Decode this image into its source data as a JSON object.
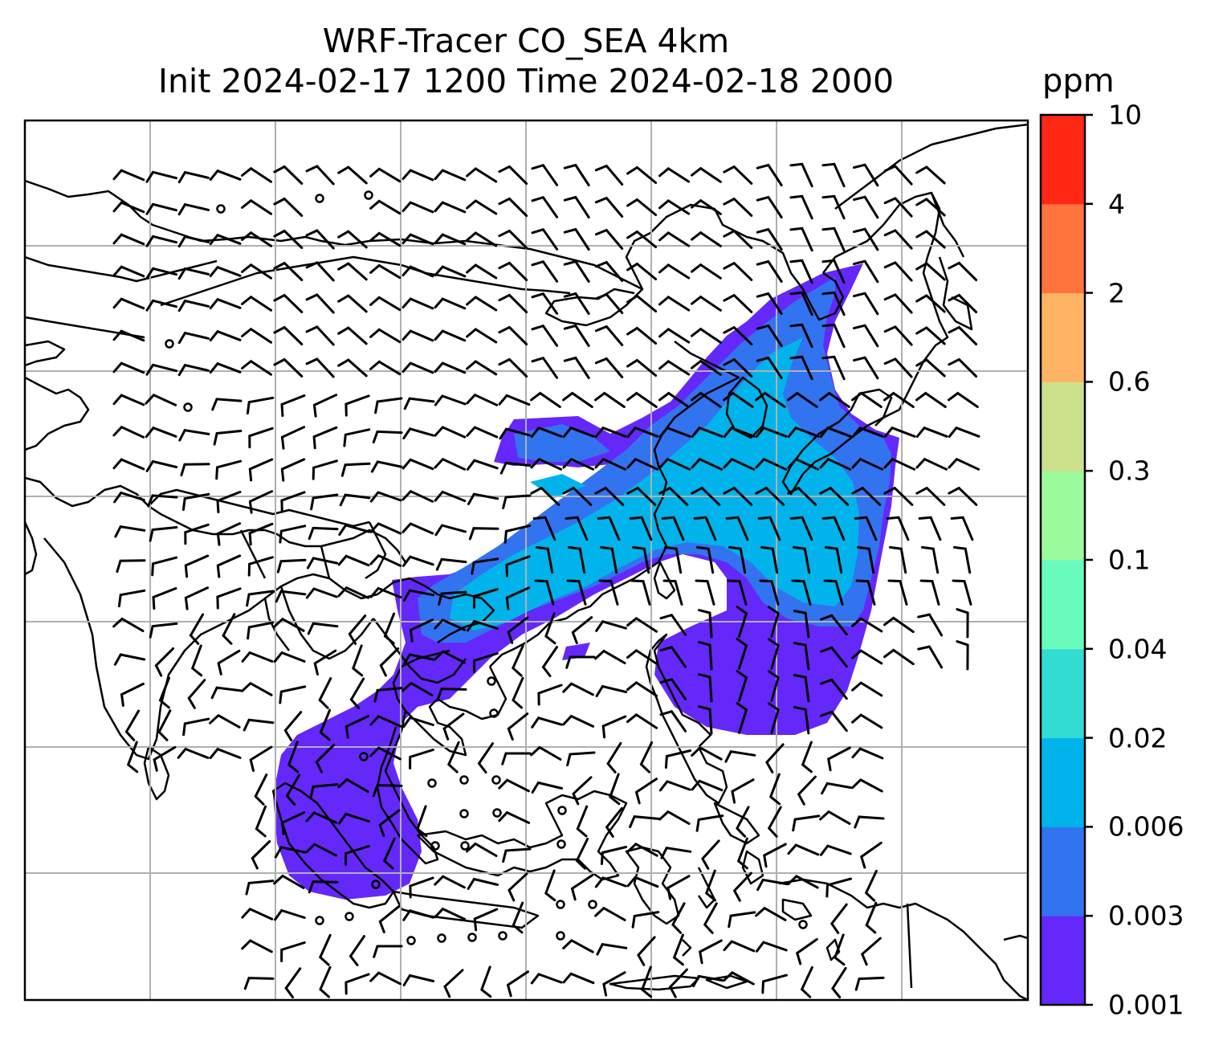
{
  "title": {
    "line1": "WRF-Tracer CO_SEA 4km",
    "line2": "Init 2024-02-17 1200 Time 2024-02-18 2000"
  },
  "colorbar": {
    "unit": "ppm",
    "levels": [
      "0.001",
      "0.003",
      "0.006",
      "0.02",
      "0.04",
      "0.1",
      "0.3",
      "0.6",
      "2",
      "4",
      "10"
    ],
    "colors": [
      "#6428fa",
      "#3273f0",
      "#00b4eb",
      "#32dcd2",
      "#69fabe",
      "#9bfa9b",
      "#cde18c",
      "#ffb464",
      "#ff733c",
      "#ff2814"
    ]
  },
  "map": {
    "gridlines": true,
    "plume_colors": {
      "faint": "#6428fa",
      "low": "#3273f0",
      "mid": "#00b4eb"
    },
    "wind_barbs": "black"
  }
}
